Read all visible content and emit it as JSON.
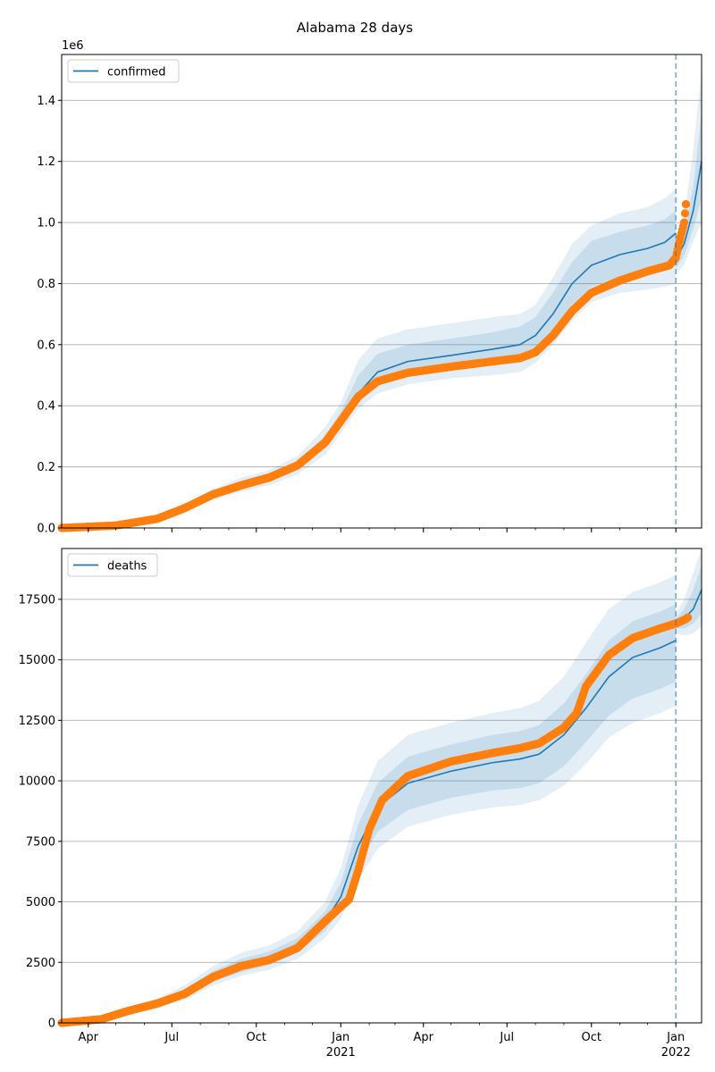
{
  "title": "Alabama 28 days",
  "colors": {
    "model_line": "#1f77b4",
    "band": "#1f77b4",
    "observed": "#ff7f0e",
    "forecast_line": "#1f77b4",
    "grid": "#b0b0b0"
  },
  "chart_data": [
    {
      "type": "line",
      "legend": "confirmed",
      "legend_position": "top-left",
      "offset_text": "1e6",
      "x_ticks": [
        {
          "date": "2020-04-01",
          "label": "Apr",
          "sub": ""
        },
        {
          "date": "2020-07-01",
          "label": "Jul",
          "sub": ""
        },
        {
          "date": "2020-10-01",
          "label": "Oct",
          "sub": ""
        },
        {
          "date": "2021-01-01",
          "label": "Jan",
          "sub": "2021"
        },
        {
          "date": "2021-04-01",
          "label": "Apr",
          "sub": ""
        },
        {
          "date": "2021-07-01",
          "label": "Jul",
          "sub": ""
        },
        {
          "date": "2021-10-01",
          "label": "Oct",
          "sub": ""
        },
        {
          "date": "2022-01-01",
          "label": "Jan",
          "sub": "2022"
        }
      ],
      "x_range": [
        "2020-03-03",
        "2022-01-29"
      ],
      "y_range": [
        0,
        1.55
      ],
      "y_ticks": [
        {
          "value": 0,
          "label": "0.0"
        },
        {
          "value": 0.2,
          "label": "0.2"
        },
        {
          "value": 0.4,
          "label": "0.4"
        },
        {
          "value": 0.6,
          "label": "0.6"
        },
        {
          "value": 0.8,
          "label": "0.8"
        },
        {
          "value": 1.0,
          "label": "1.0"
        },
        {
          "value": 1.2,
          "label": "1.2"
        },
        {
          "value": 1.4,
          "label": "1.4"
        }
      ],
      "grid": "horizontal",
      "forecast_start": "2022-01-01",
      "model": [
        {
          "x": "2020-03-03",
          "y": 0.0,
          "lo1": 0.0,
          "hi1": 0.0,
          "lo2": 0.0,
          "hi2": 0.0
        },
        {
          "x": "2020-05-01",
          "y": 0.008,
          "lo1": 0.006,
          "hi1": 0.01,
          "lo2": 0.005,
          "hi2": 0.011
        },
        {
          "x": "2020-06-15",
          "y": 0.03,
          "lo1": 0.026,
          "hi1": 0.034,
          "lo2": 0.022,
          "hi2": 0.038
        },
        {
          "x": "2020-07-15",
          "y": 0.065,
          "lo1": 0.058,
          "hi1": 0.072,
          "lo2": 0.052,
          "hi2": 0.078
        },
        {
          "x": "2020-08-15",
          "y": 0.11,
          "lo1": 0.1,
          "hi1": 0.12,
          "lo2": 0.092,
          "hi2": 0.128
        },
        {
          "x": "2020-09-15",
          "y": 0.142,
          "lo1": 0.13,
          "hi1": 0.155,
          "lo2": 0.12,
          "hi2": 0.165
        },
        {
          "x": "2020-10-15",
          "y": 0.165,
          "lo1": 0.15,
          "hi1": 0.18,
          "lo2": 0.14,
          "hi2": 0.19
        },
        {
          "x": "2020-11-15",
          "y": 0.205,
          "lo1": 0.19,
          "hi1": 0.22,
          "lo2": 0.175,
          "hi2": 0.235
        },
        {
          "x": "2020-12-15",
          "y": 0.28,
          "lo1": 0.26,
          "hi1": 0.3,
          "lo2": 0.24,
          "hi2": 0.33
        },
        {
          "x": "2021-01-01",
          "y": 0.35,
          "lo1": 0.33,
          "hi1": 0.38,
          "lo2": 0.31,
          "hi2": 0.41
        },
        {
          "x": "2021-01-20",
          "y": 0.44,
          "lo1": 0.41,
          "hi1": 0.5,
          "lo2": 0.39,
          "hi2": 0.55
        },
        {
          "x": "2021-02-10",
          "y": 0.51,
          "lo1": 0.47,
          "hi1": 0.57,
          "lo2": 0.44,
          "hi2": 0.62
        },
        {
          "x": "2021-03-15",
          "y": 0.545,
          "lo1": 0.5,
          "hi1": 0.6,
          "lo2": 0.47,
          "hi2": 0.65
        },
        {
          "x": "2021-05-01",
          "y": 0.565,
          "lo1": 0.52,
          "hi1": 0.62,
          "lo2": 0.49,
          "hi2": 0.67
        },
        {
          "x": "2021-06-15",
          "y": 0.585,
          "lo1": 0.54,
          "hi1": 0.64,
          "lo2": 0.5,
          "hi2": 0.69
        },
        {
          "x": "2021-07-15",
          "y": 0.6,
          "lo1": 0.55,
          "hi1": 0.66,
          "lo2": 0.51,
          "hi2": 0.7
        },
        {
          "x": "2021-08-01",
          "y": 0.63,
          "lo1": 0.58,
          "hi1": 0.69,
          "lo2": 0.54,
          "hi2": 0.73
        },
        {
          "x": "2021-08-20",
          "y": 0.7,
          "lo1": 0.64,
          "hi1": 0.77,
          "lo2": 0.6,
          "hi2": 0.82
        },
        {
          "x": "2021-09-10",
          "y": 0.8,
          "lo1": 0.73,
          "hi1": 0.87,
          "lo2": 0.68,
          "hi2": 0.93
        },
        {
          "x": "2021-10-01",
          "y": 0.86,
          "lo1": 0.79,
          "hi1": 0.94,
          "lo2": 0.74,
          "hi2": 0.99
        },
        {
          "x": "2021-11-01",
          "y": 0.895,
          "lo1": 0.82,
          "hi1": 0.97,
          "lo2": 0.77,
          "hi2": 1.03
        },
        {
          "x": "2021-12-01",
          "y": 0.915,
          "lo1": 0.84,
          "hi1": 0.99,
          "lo2": 0.78,
          "hi2": 1.05
        },
        {
          "x": "2021-12-20",
          "y": 0.935,
          "lo1": 0.85,
          "hi1": 1.01,
          "lo2": 0.79,
          "hi2": 1.08
        },
        {
          "x": "2022-01-01",
          "y": 0.965,
          "lo1": 0.86,
          "hi1": 1.04,
          "lo2": 0.8,
          "hi2": 1.11
        }
      ],
      "forecast": [
        {
          "x": "2022-01-01",
          "y": 0.88,
          "lo1": 0.85,
          "hi1": 0.9,
          "lo2": 0.83,
          "hi2": 0.93
        },
        {
          "x": "2022-01-10",
          "y": 0.93,
          "lo1": 0.89,
          "hi1": 0.97,
          "lo2": 0.86,
          "hi2": 1.02
        },
        {
          "x": "2022-01-20",
          "y": 1.04,
          "lo1": 0.98,
          "hi1": 1.12,
          "lo2": 0.94,
          "hi2": 1.24
        },
        {
          "x": "2022-01-29",
          "y": 1.2,
          "lo1": 1.08,
          "hi1": 1.36,
          "lo2": 1.0,
          "hi2": 1.5
        }
      ],
      "observed_anchors": [
        [
          "2020-03-03",
          0.0
        ],
        [
          "2020-05-01",
          0.008
        ],
        [
          "2020-06-15",
          0.03
        ],
        [
          "2020-07-15",
          0.065
        ],
        [
          "2020-08-15",
          0.11
        ],
        [
          "2020-09-15",
          0.14
        ],
        [
          "2020-10-15",
          0.165
        ],
        [
          "2020-11-15",
          0.205
        ],
        [
          "2020-12-15",
          0.28
        ],
        [
          "2021-01-01",
          0.35
        ],
        [
          "2021-01-20",
          0.43
        ],
        [
          "2021-02-10",
          0.48
        ],
        [
          "2021-03-15",
          0.508
        ],
        [
          "2021-05-01",
          0.528
        ],
        [
          "2021-06-15",
          0.545
        ],
        [
          "2021-07-15",
          0.556
        ],
        [
          "2021-08-01",
          0.575
        ],
        [
          "2021-08-20",
          0.63
        ],
        [
          "2021-09-10",
          0.71
        ],
        [
          "2021-10-01",
          0.77
        ],
        [
          "2021-11-01",
          0.81
        ],
        [
          "2021-12-01",
          0.84
        ],
        [
          "2021-12-25",
          0.86
        ],
        [
          "2022-01-01",
          0.885
        ],
        [
          "2022-01-05",
          0.94
        ],
        [
          "2022-01-10",
          1.0
        ],
        [
          "2022-01-12",
          1.06
        ]
      ]
    },
    {
      "type": "line",
      "legend": "deaths",
      "legend_position": "top-left",
      "offset_text": "",
      "x_ticks": [
        {
          "date": "2020-04-01",
          "label": "Apr",
          "sub": ""
        },
        {
          "date": "2020-07-01",
          "label": "Jul",
          "sub": ""
        },
        {
          "date": "2020-10-01",
          "label": "Oct",
          "sub": ""
        },
        {
          "date": "2021-01-01",
          "label": "Jan",
          "sub": "2021"
        },
        {
          "date": "2021-04-01",
          "label": "Apr",
          "sub": ""
        },
        {
          "date": "2021-07-01",
          "label": "Jul",
          "sub": ""
        },
        {
          "date": "2021-10-01",
          "label": "Oct",
          "sub": ""
        },
        {
          "date": "2022-01-01",
          "label": "Jan",
          "sub": "2022"
        }
      ],
      "x_range": [
        "2020-03-03",
        "2022-01-29"
      ],
      "y_range": [
        0,
        19600
      ],
      "y_ticks": [
        {
          "value": 0,
          "label": "0"
        },
        {
          "value": 2500,
          "label": "2500"
        },
        {
          "value": 5000,
          "label": "5000"
        },
        {
          "value": 7500,
          "label": "7500"
        },
        {
          "value": 10000,
          "label": "10000"
        },
        {
          "value": 12500,
          "label": "12500"
        },
        {
          "value": 15000,
          "label": "15000"
        },
        {
          "value": 17500,
          "label": "17500"
        }
      ],
      "grid": "horizontal",
      "forecast_start": "2022-01-01",
      "model": [
        {
          "x": "2020-03-03",
          "y": 0,
          "lo1": 0,
          "hi1": 0,
          "lo2": 0,
          "hi2": 0
        },
        {
          "x": "2020-04-15",
          "y": 150,
          "lo1": 120,
          "hi1": 180,
          "lo2": 100,
          "hi2": 210
        },
        {
          "x": "2020-05-15",
          "y": 500,
          "lo1": 420,
          "hi1": 580,
          "lo2": 380,
          "hi2": 640
        },
        {
          "x": "2020-06-15",
          "y": 800,
          "lo1": 680,
          "hi1": 920,
          "lo2": 600,
          "hi2": 1000
        },
        {
          "x": "2020-07-15",
          "y": 1200,
          "lo1": 1050,
          "hi1": 1400,
          "lo2": 950,
          "hi2": 1550
        },
        {
          "x": "2020-08-15",
          "y": 1900,
          "lo1": 1700,
          "hi1": 2150,
          "lo2": 1550,
          "hi2": 2350
        },
        {
          "x": "2020-09-15",
          "y": 2350,
          "lo1": 2100,
          "hi1": 2650,
          "lo2": 1950,
          "hi2": 2900
        },
        {
          "x": "2020-10-15",
          "y": 2650,
          "lo1": 2400,
          "hi1": 2950,
          "lo2": 2200,
          "hi2": 3200
        },
        {
          "x": "2020-11-15",
          "y": 3200,
          "lo1": 2900,
          "hi1": 3500,
          "lo2": 2650,
          "hi2": 3800
        },
        {
          "x": "2020-12-15",
          "y": 4200,
          "lo1": 3800,
          "hi1": 4600,
          "lo2": 3500,
          "hi2": 5000
        },
        {
          "x": "2021-01-01",
          "y": 5200,
          "lo1": 4700,
          "hi1": 5800,
          "lo2": 4300,
          "hi2": 6400
        },
        {
          "x": "2021-01-20",
          "y": 7300,
          "lo1": 6500,
          "hi1": 8200,
          "lo2": 5900,
          "hi2": 9000
        },
        {
          "x": "2021-02-10",
          "y": 8900,
          "lo1": 7900,
          "hi1": 9900,
          "lo2": 7200,
          "hi2": 10800
        },
        {
          "x": "2021-03-15",
          "y": 9900,
          "lo1": 8800,
          "hi1": 11000,
          "lo2": 8100,
          "hi2": 11900
        },
        {
          "x": "2021-05-01",
          "y": 10400,
          "lo1": 9300,
          "hi1": 11500,
          "lo2": 8600,
          "hi2": 12400
        },
        {
          "x": "2021-06-15",
          "y": 10750,
          "lo1": 9600,
          "hi1": 11900,
          "lo2": 8900,
          "hi2": 12800
        },
        {
          "x": "2021-07-15",
          "y": 10900,
          "lo1": 9700,
          "hi1": 12050,
          "lo2": 9000,
          "hi2": 13000
        },
        {
          "x": "2021-08-05",
          "y": 11100,
          "lo1": 9900,
          "hi1": 12300,
          "lo2": 9200,
          "hi2": 13300
        },
        {
          "x": "2021-09-01",
          "y": 11900,
          "lo1": 10600,
          "hi1": 13200,
          "lo2": 9800,
          "hi2": 14300
        },
        {
          "x": "2021-09-25",
          "y": 13000,
          "lo1": 11600,
          "hi1": 14400,
          "lo2": 10700,
          "hi2": 15700
        },
        {
          "x": "2021-10-20",
          "y": 14300,
          "lo1": 12700,
          "hi1": 15800,
          "lo2": 11800,
          "hi2": 17100
        },
        {
          "x": "2021-11-15",
          "y": 15100,
          "lo1": 13400,
          "hi1": 16600,
          "lo2": 12400,
          "hi2": 17800
        },
        {
          "x": "2021-12-15",
          "y": 15500,
          "lo1": 13800,
          "hi1": 17000,
          "lo2": 12800,
          "hi2": 18200
        },
        {
          "x": "2022-01-01",
          "y": 15800,
          "lo1": 14100,
          "hi1": 17300,
          "lo2": 13100,
          "hi2": 18500
        }
      ],
      "forecast": [
        {
          "x": "2022-01-01",
          "y": 16500,
          "lo1": 16300,
          "hi1": 16700,
          "lo2": 16100,
          "hi2": 16900
        },
        {
          "x": "2022-01-10",
          "y": 16700,
          "lo1": 16300,
          "hi1": 17100,
          "lo2": 16000,
          "hi2": 17500
        },
        {
          "x": "2022-01-20",
          "y": 17100,
          "lo1": 16500,
          "hi1": 17900,
          "lo2": 16100,
          "hi2": 18600
        },
        {
          "x": "2022-01-29",
          "y": 17900,
          "lo1": 16900,
          "hi1": 18900,
          "lo2": 16400,
          "hi2": 19600
        }
      ],
      "observed_anchors": [
        [
          "2020-03-03",
          0
        ],
        [
          "2020-04-15",
          150
        ],
        [
          "2020-05-15",
          500
        ],
        [
          "2020-06-15",
          800
        ],
        [
          "2020-07-15",
          1200
        ],
        [
          "2020-08-15",
          1900
        ],
        [
          "2020-09-15",
          2350
        ],
        [
          "2020-10-15",
          2600
        ],
        [
          "2020-11-15",
          3100
        ],
        [
          "2020-12-15",
          4200
        ],
        [
          "2021-01-01",
          4800
        ],
        [
          "2021-01-10",
          5100
        ],
        [
          "2021-01-20",
          6300
        ],
        [
          "2021-02-01",
          8000
        ],
        [
          "2021-02-15",
          9200
        ],
        [
          "2021-03-15",
          10200
        ],
        [
          "2021-05-01",
          10800
        ],
        [
          "2021-06-15",
          11150
        ],
        [
          "2021-07-15",
          11350
        ],
        [
          "2021-08-05",
          11550
        ],
        [
          "2021-09-01",
          12200
        ],
        [
          "2021-09-15",
          12800
        ],
        [
          "2021-09-25",
          13900
        ],
        [
          "2021-10-20",
          15200
        ],
        [
          "2021-11-15",
          15900
        ],
        [
          "2021-12-15",
          16300
        ],
        [
          "2022-01-01",
          16500
        ],
        [
          "2022-01-10",
          16650
        ],
        [
          "2022-01-14",
          16750
        ]
      ]
    }
  ]
}
